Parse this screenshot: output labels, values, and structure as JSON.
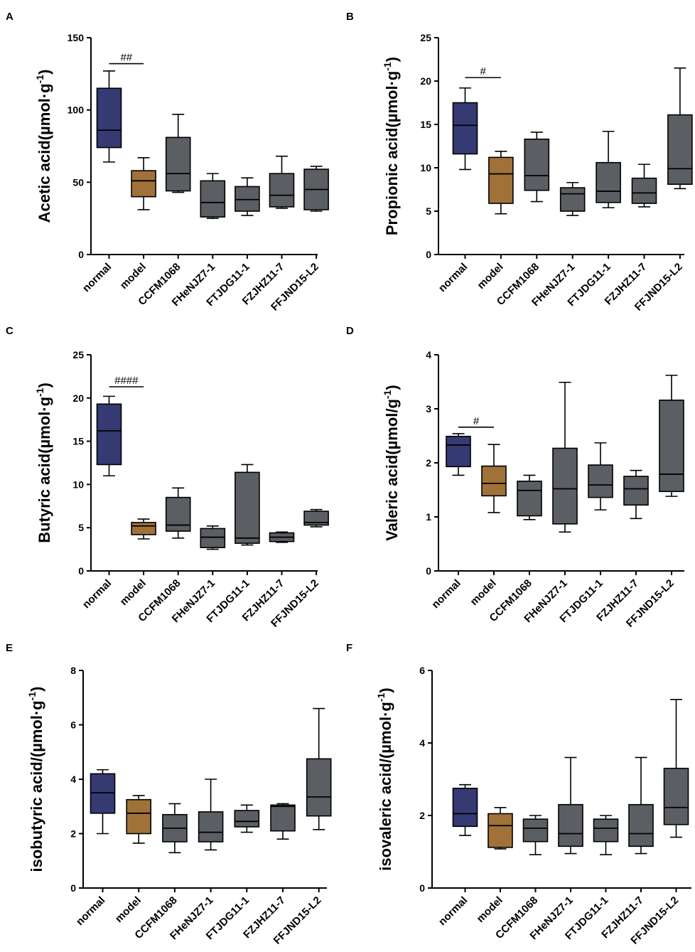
{
  "colors": {
    "normal": "#363a73",
    "model": "#a0723a",
    "other": "#5b5e63",
    "axis": "#000000"
  },
  "chart_data": [
    {
      "panel": "A",
      "type": "box",
      "ylabel": "Acetic acid(µmol·g",
      "ylabel_sup": "-1",
      "ylabel_close": ")",
      "ylim": [
        0,
        150
      ],
      "yticks": [
        0,
        50,
        100,
        150
      ],
      "categories": [
        "normal",
        "model",
        "CCFM1068",
        "FHeNJZ7-1",
        "FTJDG11-1",
        "FZJHZ11-7",
        "FFJND15-L2"
      ],
      "boxes": [
        {
          "min": 64,
          "q1": 74,
          "median": 86,
          "q3": 115,
          "max": 127
        },
        {
          "min": 31,
          "q1": 40,
          "median": 51,
          "q3": 58,
          "max": 67
        },
        {
          "min": 43,
          "q1": 44,
          "median": 56,
          "q3": 81,
          "max": 97
        },
        {
          "min": 25,
          "q1": 26,
          "median": 36,
          "q3": 51,
          "max": 56
        },
        {
          "min": 27,
          "q1": 30,
          "median": 38,
          "q3": 47,
          "max": 53
        },
        {
          "min": 32,
          "q1": 33,
          "median": 41,
          "q3": 56,
          "max": 68
        },
        {
          "min": 30,
          "q1": 31,
          "median": 45,
          "q3": 59,
          "max": 61
        }
      ],
      "significance": {
        "label": "##",
        "from": 0,
        "to": 1,
        "y": 132
      }
    },
    {
      "panel": "B",
      "type": "box",
      "ylabel": "Propionic acid(µmol·g",
      "ylabel_sup": "-1",
      "ylabel_close": ")",
      "ylim": [
        0,
        25
      ],
      "yticks": [
        0,
        5,
        10,
        15,
        20,
        25
      ],
      "categories": [
        "normal",
        "model",
        "CCFM1068",
        "FHeNJZ7-1",
        "FTJDG11-1",
        "FZJHZ11-7",
        "FFJND15-L2"
      ],
      "boxes": [
        {
          "min": 9.8,
          "q1": 11.6,
          "median": 14.9,
          "q3": 17.5,
          "max": 19.2
        },
        {
          "min": 4.7,
          "q1": 5.9,
          "median": 9.3,
          "q3": 11.2,
          "max": 11.9
        },
        {
          "min": 6.1,
          "q1": 7.4,
          "median": 9.1,
          "q3": 13.3,
          "max": 14.1
        },
        {
          "min": 4.5,
          "q1": 5.0,
          "median": 7.0,
          "q3": 7.7,
          "max": 8.3
        },
        {
          "min": 5.4,
          "q1": 6.0,
          "median": 7.3,
          "q3": 10.6,
          "max": 14.2
        },
        {
          "min": 5.5,
          "q1": 5.9,
          "median": 7.1,
          "q3": 8.8,
          "max": 10.4
        },
        {
          "min": 7.6,
          "q1": 8.1,
          "median": 9.9,
          "q3": 16.1,
          "max": 21.5
        }
      ],
      "significance": {
        "label": "#",
        "from": 0,
        "to": 1,
        "y": 20.4
      }
    },
    {
      "panel": "C",
      "type": "box",
      "ylabel": "Butyric acid(µmol·g",
      "ylabel_sup": "-1",
      "ylabel_close": ")",
      "ylim": [
        0,
        25
      ],
      "yticks": [
        0,
        5,
        10,
        15,
        20,
        25
      ],
      "categories": [
        "normal",
        "model",
        "CCFM1068",
        "FHeNJZ7-1",
        "FTJDG11-1",
        "FZJHZ11-7",
        "FFJND15-L2"
      ],
      "boxes": [
        {
          "min": 11.0,
          "q1": 12.3,
          "median": 16.2,
          "q3": 19.3,
          "max": 20.2
        },
        {
          "min": 3.7,
          "q1": 4.2,
          "median": 5.2,
          "q3": 5.6,
          "max": 6.0
        },
        {
          "min": 3.8,
          "q1": 4.6,
          "median": 5.3,
          "q3": 8.5,
          "max": 9.6
        },
        {
          "min": 2.5,
          "q1": 2.7,
          "median": 3.9,
          "q3": 4.9,
          "max": 5.2
        },
        {
          "min": 3.0,
          "q1": 3.2,
          "median": 3.8,
          "q3": 11.4,
          "max": 12.3
        },
        {
          "min": 3.3,
          "q1": 3.4,
          "median": 3.9,
          "q3": 4.4,
          "max": 4.5
        },
        {
          "min": 5.1,
          "q1": 5.3,
          "median": 5.6,
          "q3": 6.9,
          "max": 7.1
        }
      ],
      "significance": {
        "label": "####",
        "from": 0,
        "to": 1,
        "y": 21.3
      }
    },
    {
      "panel": "D",
      "type": "box",
      "ylabel": "Valeric acid(µmol/g",
      "ylabel_sup": "-1",
      "ylabel_close": ")",
      "ylim": [
        0,
        4
      ],
      "yticks": [
        0,
        1,
        2,
        3,
        4
      ],
      "categories": [
        "normal",
        "model",
        "CCFM1068",
        "FHeNJZ7-1",
        "FTJDG11-1",
        "FZJHZ11-7",
        "FFJND15-L2"
      ],
      "boxes": [
        {
          "min": 1.77,
          "q1": 1.93,
          "median": 2.33,
          "q3": 2.49,
          "max": 2.54
        },
        {
          "min": 1.08,
          "q1": 1.39,
          "median": 1.62,
          "q3": 1.94,
          "max": 2.34
        },
        {
          "min": 0.95,
          "q1": 1.02,
          "median": 1.49,
          "q3": 1.66,
          "max": 1.77
        },
        {
          "min": 0.72,
          "q1": 0.87,
          "median": 1.52,
          "q3": 2.27,
          "max": 3.49
        },
        {
          "min": 1.13,
          "q1": 1.36,
          "median": 1.59,
          "q3": 1.96,
          "max": 2.37
        },
        {
          "min": 0.97,
          "q1": 1.22,
          "median": 1.52,
          "q3": 1.75,
          "max": 1.86
        },
        {
          "min": 1.38,
          "q1": 1.47,
          "median": 1.79,
          "q3": 3.16,
          "max": 3.62
        }
      ],
      "significance": {
        "label": "#",
        "from": 0,
        "to": 1,
        "y": 2.66
      }
    },
    {
      "panel": "E",
      "type": "box",
      "ylabel": "isobutyric acid/(µmol·g",
      "ylabel_sup": "-1",
      "ylabel_close": ")",
      "ylim": [
        0,
        8
      ],
      "yticks": [
        0,
        2,
        4,
        6,
        8
      ],
      "categories": [
        "normal",
        "model",
        "CCFM1068",
        "FHeNJZ7-1",
        "FTJDG11-1",
        "FZJHZ11-7",
        "FFJND15-L2"
      ],
      "boxes": [
        {
          "min": 2.0,
          "q1": 2.75,
          "median": 3.5,
          "q3": 4.2,
          "max": 4.35
        },
        {
          "min": 1.65,
          "q1": 2.0,
          "median": 2.75,
          "q3": 3.25,
          "max": 3.4
        },
        {
          "min": 1.3,
          "q1": 1.7,
          "median": 2.2,
          "q3": 2.7,
          "max": 3.1
        },
        {
          "min": 1.4,
          "q1": 1.7,
          "median": 2.05,
          "q3": 2.8,
          "max": 4.0
        },
        {
          "min": 2.05,
          "q1": 2.25,
          "median": 2.45,
          "q3": 2.85,
          "max": 3.05
        },
        {
          "min": 1.8,
          "q1": 2.1,
          "median": 3.0,
          "q3": 3.05,
          "max": 3.1
        },
        {
          "min": 2.15,
          "q1": 2.65,
          "median": 3.35,
          "q3": 4.75,
          "max": 6.6
        }
      ],
      "significance": null
    },
    {
      "panel": "F",
      "type": "box",
      "ylabel": "isovaleric acid/(µmol·g",
      "ylabel_sup": "-1",
      "ylabel_close": ")",
      "ylim": [
        0,
        6
      ],
      "yticks": [
        0,
        2,
        4,
        6
      ],
      "categories": [
        "normal",
        "model",
        "CCFM1068",
        "FHeNJZ7-1",
        "FTJDG11-1",
        "FZJHZ11-7",
        "FFJND15-L2"
      ],
      "boxes": [
        {
          "min": 1.45,
          "q1": 1.7,
          "median": 2.05,
          "q3": 2.75,
          "max": 2.85
        },
        {
          "min": 1.08,
          "q1": 1.12,
          "median": 1.72,
          "q3": 2.05,
          "max": 2.22
        },
        {
          "min": 0.92,
          "q1": 1.28,
          "median": 1.65,
          "q3": 1.9,
          "max": 2.0
        },
        {
          "min": 0.95,
          "q1": 1.15,
          "median": 1.5,
          "q3": 2.3,
          "max": 3.6
        },
        {
          "min": 0.92,
          "q1": 1.28,
          "median": 1.65,
          "q3": 1.9,
          "max": 2.0
        },
        {
          "min": 0.95,
          "q1": 1.15,
          "median": 1.5,
          "q3": 2.3,
          "max": 3.6
        },
        {
          "min": 1.4,
          "q1": 1.75,
          "median": 2.22,
          "q3": 3.3,
          "max": 5.2
        }
      ],
      "significance": null
    }
  ]
}
